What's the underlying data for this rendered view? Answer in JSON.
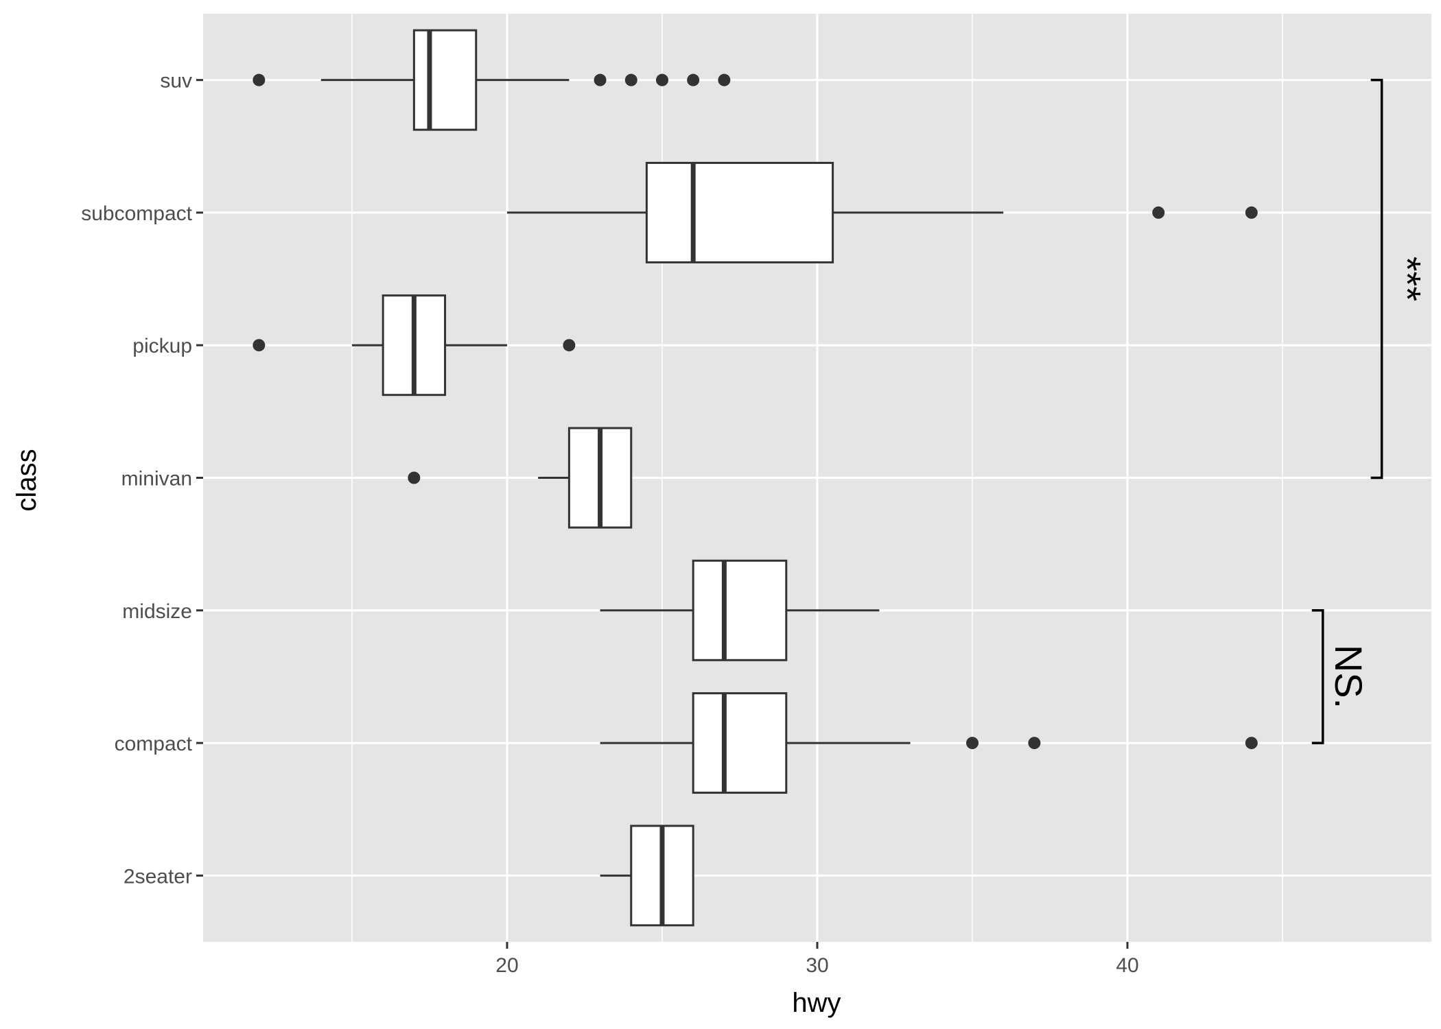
{
  "chart_data": {
    "type": "boxplot",
    "orientation": "horizontal",
    "xlabel": "hwy",
    "ylabel": "class",
    "xlim": [
      10.2,
      49.8
    ],
    "x_ticks": [
      20,
      30,
      40
    ],
    "x_tick_labels": [
      "20",
      "30",
      "40"
    ],
    "x_minor_grid": [
      15,
      25,
      35,
      45
    ],
    "grid": true,
    "categories": [
      "2seater",
      "compact",
      "midsize",
      "minivan",
      "pickup",
      "subcompact",
      "suv"
    ],
    "boxes": [
      {
        "class": "2seater",
        "whisker_low": 23,
        "q1": 24,
        "median": 25,
        "q3": 26,
        "whisker_high": 26,
        "outliers": []
      },
      {
        "class": "compact",
        "whisker_low": 23,
        "q1": 26,
        "median": 27,
        "q3": 29,
        "whisker_high": 33,
        "outliers": [
          35,
          37,
          44
        ]
      },
      {
        "class": "midsize",
        "whisker_low": 23,
        "q1": 26,
        "median": 27,
        "q3": 29,
        "whisker_high": 32,
        "outliers": []
      },
      {
        "class": "minivan",
        "whisker_low": 21,
        "q1": 22,
        "median": 23,
        "q3": 24,
        "whisker_high": 24,
        "outliers": [
          17
        ]
      },
      {
        "class": "pickup",
        "whisker_low": 15,
        "q1": 16,
        "median": 17,
        "q3": 18,
        "whisker_high": 20,
        "outliers": [
          12,
          22
        ]
      },
      {
        "class": "subcompact",
        "whisker_low": 20,
        "q1": 24.5,
        "median": 26,
        "q3": 30.5,
        "whisker_high": 36,
        "outliers": [
          41,
          44
        ]
      },
      {
        "class": "suv",
        "whisker_low": 14,
        "q1": 17,
        "median": 17.5,
        "q3": 19,
        "whisker_high": 22,
        "outliers": [
          12,
          23,
          24,
          25,
          26,
          27
        ]
      }
    ],
    "annotations": [
      {
        "from": "minivan",
        "to": "suv",
        "x": 48.2,
        "label": "***"
      },
      {
        "from": "compact",
        "to": "midsize",
        "x": 46.3,
        "label": "NS."
      }
    ],
    "colors": {
      "panel": "#e5e5e5",
      "grid": "#ffffff",
      "box_fill": "#ffffff",
      "line": "#333333",
      "text": "#4d4d4d"
    }
  }
}
